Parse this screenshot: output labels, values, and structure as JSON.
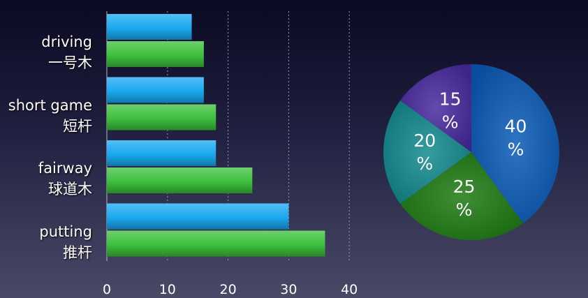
{
  "chart_data": [
    {
      "type": "bar",
      "orientation": "horizontal",
      "categories": [
        {
          "en": "driving",
          "zh": "一号木"
        },
        {
          "en": "short game",
          "zh": "短杆"
        },
        {
          "en": "fairway",
          "zh": "球道木"
        },
        {
          "en": "putting",
          "zh": "推杆"
        }
      ],
      "series": [
        {
          "color": "#1aa8f0",
          "values": [
            14,
            16,
            18,
            30
          ]
        },
        {
          "color": "#3cc03c",
          "values": [
            16,
            18,
            24,
            36
          ]
        }
      ],
      "xlim": [
        0,
        40
      ],
      "xticks": [
        "0",
        "10",
        "20",
        "30",
        "40"
      ],
      "grid": "vertical-dashed"
    },
    {
      "type": "pie",
      "slices": [
        {
          "label": "40\n%",
          "value": 40,
          "color": "#0a5bb8"
        },
        {
          "label": "25\n%",
          "value": 25,
          "color": "#1e7a12"
        },
        {
          "label": "20\n%",
          "value": 20,
          "color": "#138a8e"
        },
        {
          "label": "15\n%",
          "value": 15,
          "color": "#4a2aa0"
        }
      ]
    }
  ]
}
